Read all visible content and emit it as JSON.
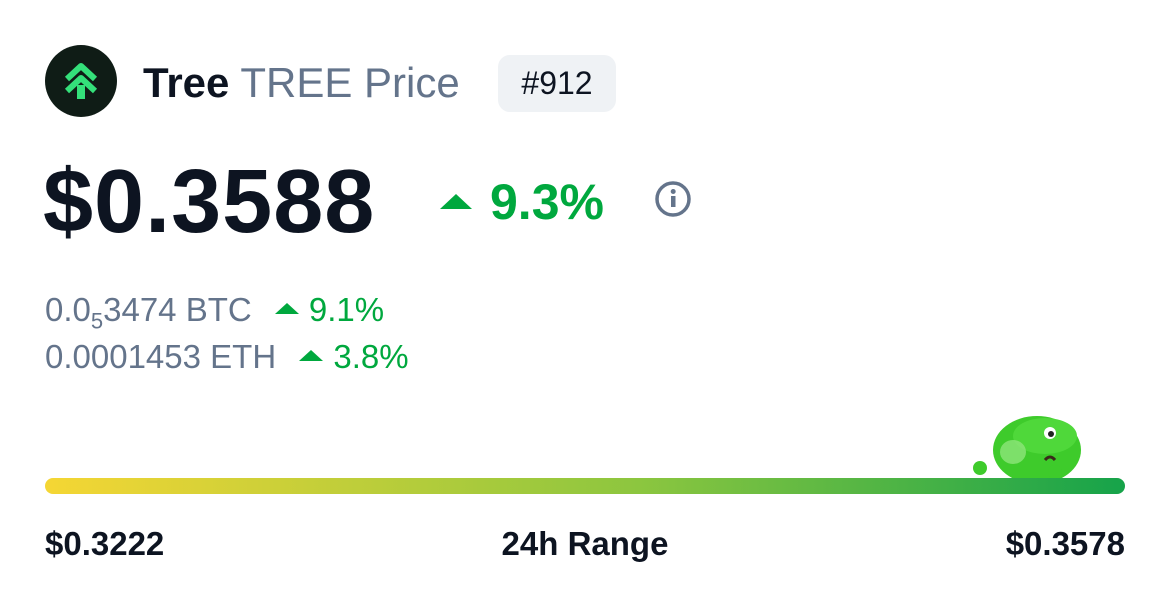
{
  "header": {
    "name": "Tree",
    "subtitle": "TREE Price",
    "rank": "#912"
  },
  "price": {
    "usd": "$0.3588",
    "change": "9.3%"
  },
  "conversions": [
    {
      "prefix": "0.0",
      "subscript": "5",
      "suffix": "3474 BTC",
      "change": "9.1%"
    },
    {
      "prefix": "0.0001453 ETH",
      "change": "3.8%"
    }
  ],
  "range": {
    "low": "$0.3222",
    "label": "24h Range",
    "high": "$0.3578"
  }
}
